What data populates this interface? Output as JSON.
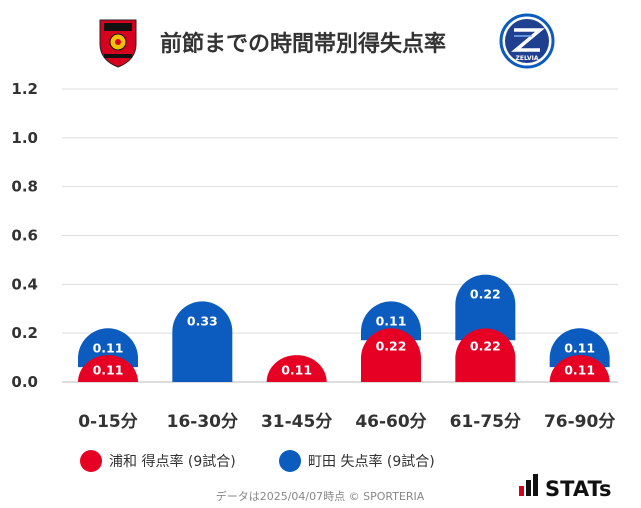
{
  "colors": {
    "home": "#e60023",
    "away": "#0b5cbe",
    "grid": "#dddddd",
    "text": "#333333",
    "brand_red": "#d7001e"
  },
  "header": {
    "home_logo_icon": "urawa-reds-crest-icon",
    "away_logo_icon": "machida-zelvia-crest-icon",
    "away_logo_text": "ZELVIA"
  },
  "legend": {
    "home_label": "浦和 得点率 (9試合)",
    "away_label": "町田 失点率 (9試合)"
  },
  "footer": {
    "note": "データは2025/04/07時点 © SPORTERIA",
    "brand": "STATs"
  },
  "chart_data": {
    "type": "bar",
    "stacked": true,
    "title": "前節までの時間帯別得失点率",
    "categories": [
      "0-15分",
      "16-30分",
      "31-45分",
      "46-60分",
      "61-75分",
      "76-90分"
    ],
    "series": [
      {
        "name": "浦和 得点率 (9試合)",
        "values": [
          0.11,
          0,
          0.11,
          0.22,
          0.22,
          0.11
        ]
      },
      {
        "name": "町田 失点率 (9試合)",
        "values": [
          0.11,
          0.33,
          0,
          0.11,
          0.22,
          0.11
        ]
      }
    ],
    "value_labels": {
      "home": [
        "0.11",
        "",
        "0.11",
        "0.22",
        "0.22",
        "0.11"
      ],
      "away": [
        "0.11",
        "0.33",
        "",
        "0.11",
        "0.22",
        "0.11"
      ]
    },
    "yticks": [
      "0.0",
      "0.2",
      "0.4",
      "0.6",
      "0.8",
      "1.0",
      "1.2"
    ],
    "ylim": [
      0,
      1.2
    ],
    "xlabel": "",
    "ylabel": "",
    "grid": true,
    "legend_position": "bottom-left"
  }
}
